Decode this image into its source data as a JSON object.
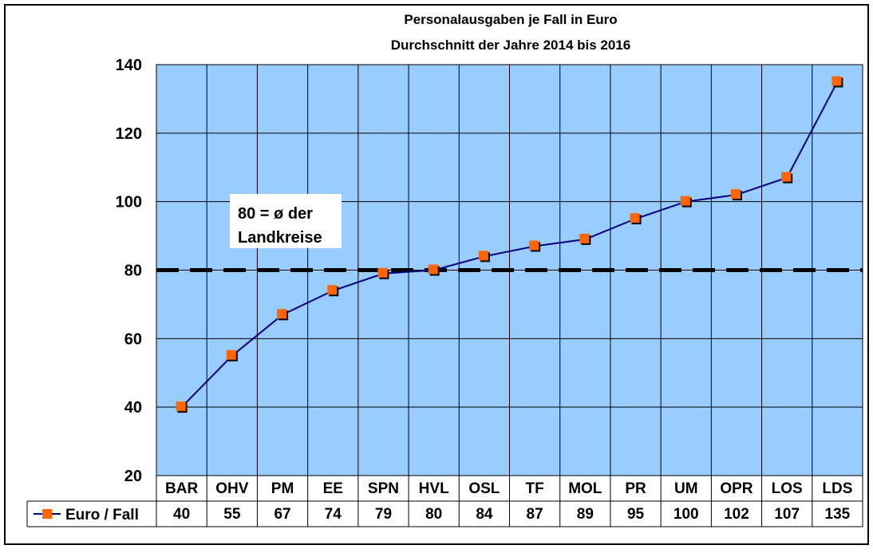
{
  "chart_data": {
    "type": "line",
    "title": "Personalausgaben  je Fall  in Euro",
    "subtitle": "Durchschnitt  der Jahre 2014 bis 2016",
    "categories": [
      "BAR",
      "OHV",
      "PM",
      "EE",
      "SPN",
      "HVL",
      "OSL",
      "TF",
      "MOL",
      "PR",
      "UM",
      "OPR",
      "LOS",
      "LDS"
    ],
    "series": [
      {
        "name": "Euro / Fall",
        "values": [
          40,
          55,
          67,
          74,
          79,
          80,
          84,
          87,
          89,
          95,
          100,
          102,
          107,
          135
        ]
      }
    ],
    "ylim": [
      20,
      140
    ],
    "yticks": [
      20,
      40,
      60,
      80,
      100,
      120,
      140
    ],
    "reference_line": {
      "value": 80
    },
    "annotation": {
      "line1": "80 = ø der",
      "line2": "Landkreise"
    },
    "grid": true,
    "legend": "data-table",
    "colors": {
      "plot_bg": "#99ccff",
      "line": "#000080",
      "marker": "#ff6600",
      "marker_shadow": "#000000"
    }
  }
}
